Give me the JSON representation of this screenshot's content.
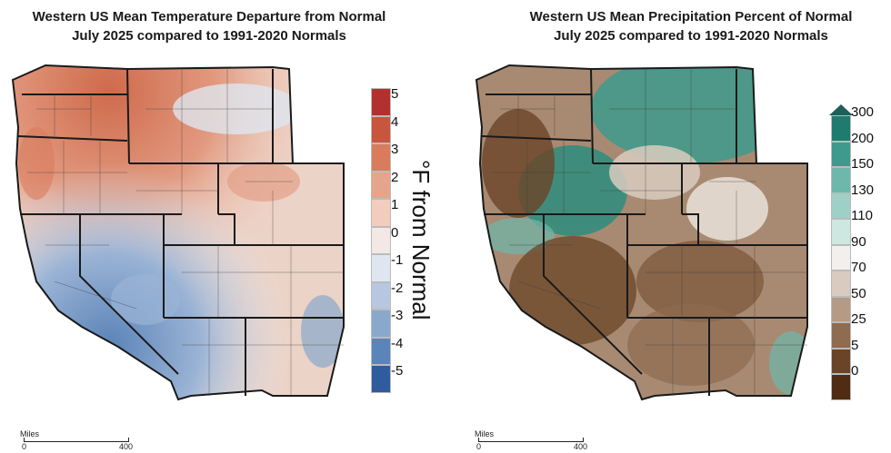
{
  "left_panel": {
    "title_line1": "Western US Mean Temperature Departure from Normal",
    "title_line2": "July 2025 compared to 1991-2020 Normals",
    "unit_label": "°F from Normal",
    "legend": {
      "labels": [
        "5",
        "4",
        "3",
        "2",
        "1",
        "0",
        "-1",
        "-2",
        "-3",
        "-4",
        "-5"
      ],
      "colors": [
        "#b2312f",
        "#c8553e",
        "#d97c5e",
        "#e6a48a",
        "#f2cdbd",
        "#f3e8e5",
        "#dfe6ef",
        "#b6c7df",
        "#8aa8cc",
        "#5b84b8",
        "#2f5c9c"
      ]
    }
  },
  "right_panel": {
    "title_line1": "Western US Mean Precipitation Percent of Normal",
    "title_line2": "July 2025 compared to 1991-2020 Normals",
    "legend": {
      "labels": [
        "300",
        "200",
        "150",
        "130",
        "110",
        "90",
        "70",
        "50",
        "25",
        "5",
        "0"
      ],
      "colors": [
        "#1f7a6f",
        "#3d9a8c",
        "#6db8ab",
        "#9dd0c6",
        "#cde7e1",
        "#f2efec",
        "#d9cbbf",
        "#b59a86",
        "#8f6b50",
        "#6b4427",
        "#4f2c13"
      ]
    }
  },
  "scale_bar": {
    "unit": "Miles",
    "start": "0",
    "end": "400"
  }
}
